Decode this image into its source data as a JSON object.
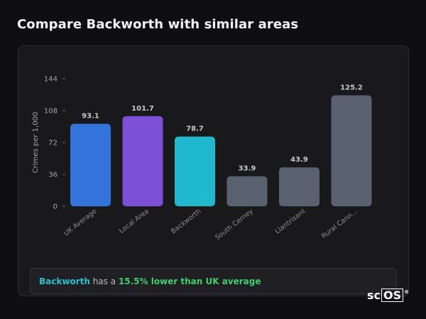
{
  "page": {
    "title": "Compare Backworth with similar areas"
  },
  "chart_data": {
    "type": "bar",
    "ylabel": "Crimes per 1,000",
    "xlabel": "",
    "ylim": [
      0,
      144
    ],
    "yticks": [
      0,
      36,
      72,
      108,
      144
    ],
    "grid": false,
    "categories": [
      "UK Average",
      "Local Area",
      "Backworth",
      "South Cerney",
      "Llantrisant",
      "Rural Cann..."
    ],
    "values": [
      93.1,
      101.7,
      78.7,
      33.9,
      43.9,
      125.2
    ],
    "value_labels": [
      "93.1",
      "101.7",
      "78.7",
      "33.9",
      "43.9",
      "125.2"
    ],
    "colors": [
      "#3273dc",
      "#7b4fd6",
      "#1fb8cc",
      "#5a6272",
      "#5a6272",
      "#5a6272"
    ]
  },
  "callout": {
    "area": "Backworth",
    "middle": " has a ",
    "difference": "15.5% lower than UK average"
  },
  "logo": {
    "main": "sc",
    "boxed": "OS",
    "mark": "®"
  }
}
